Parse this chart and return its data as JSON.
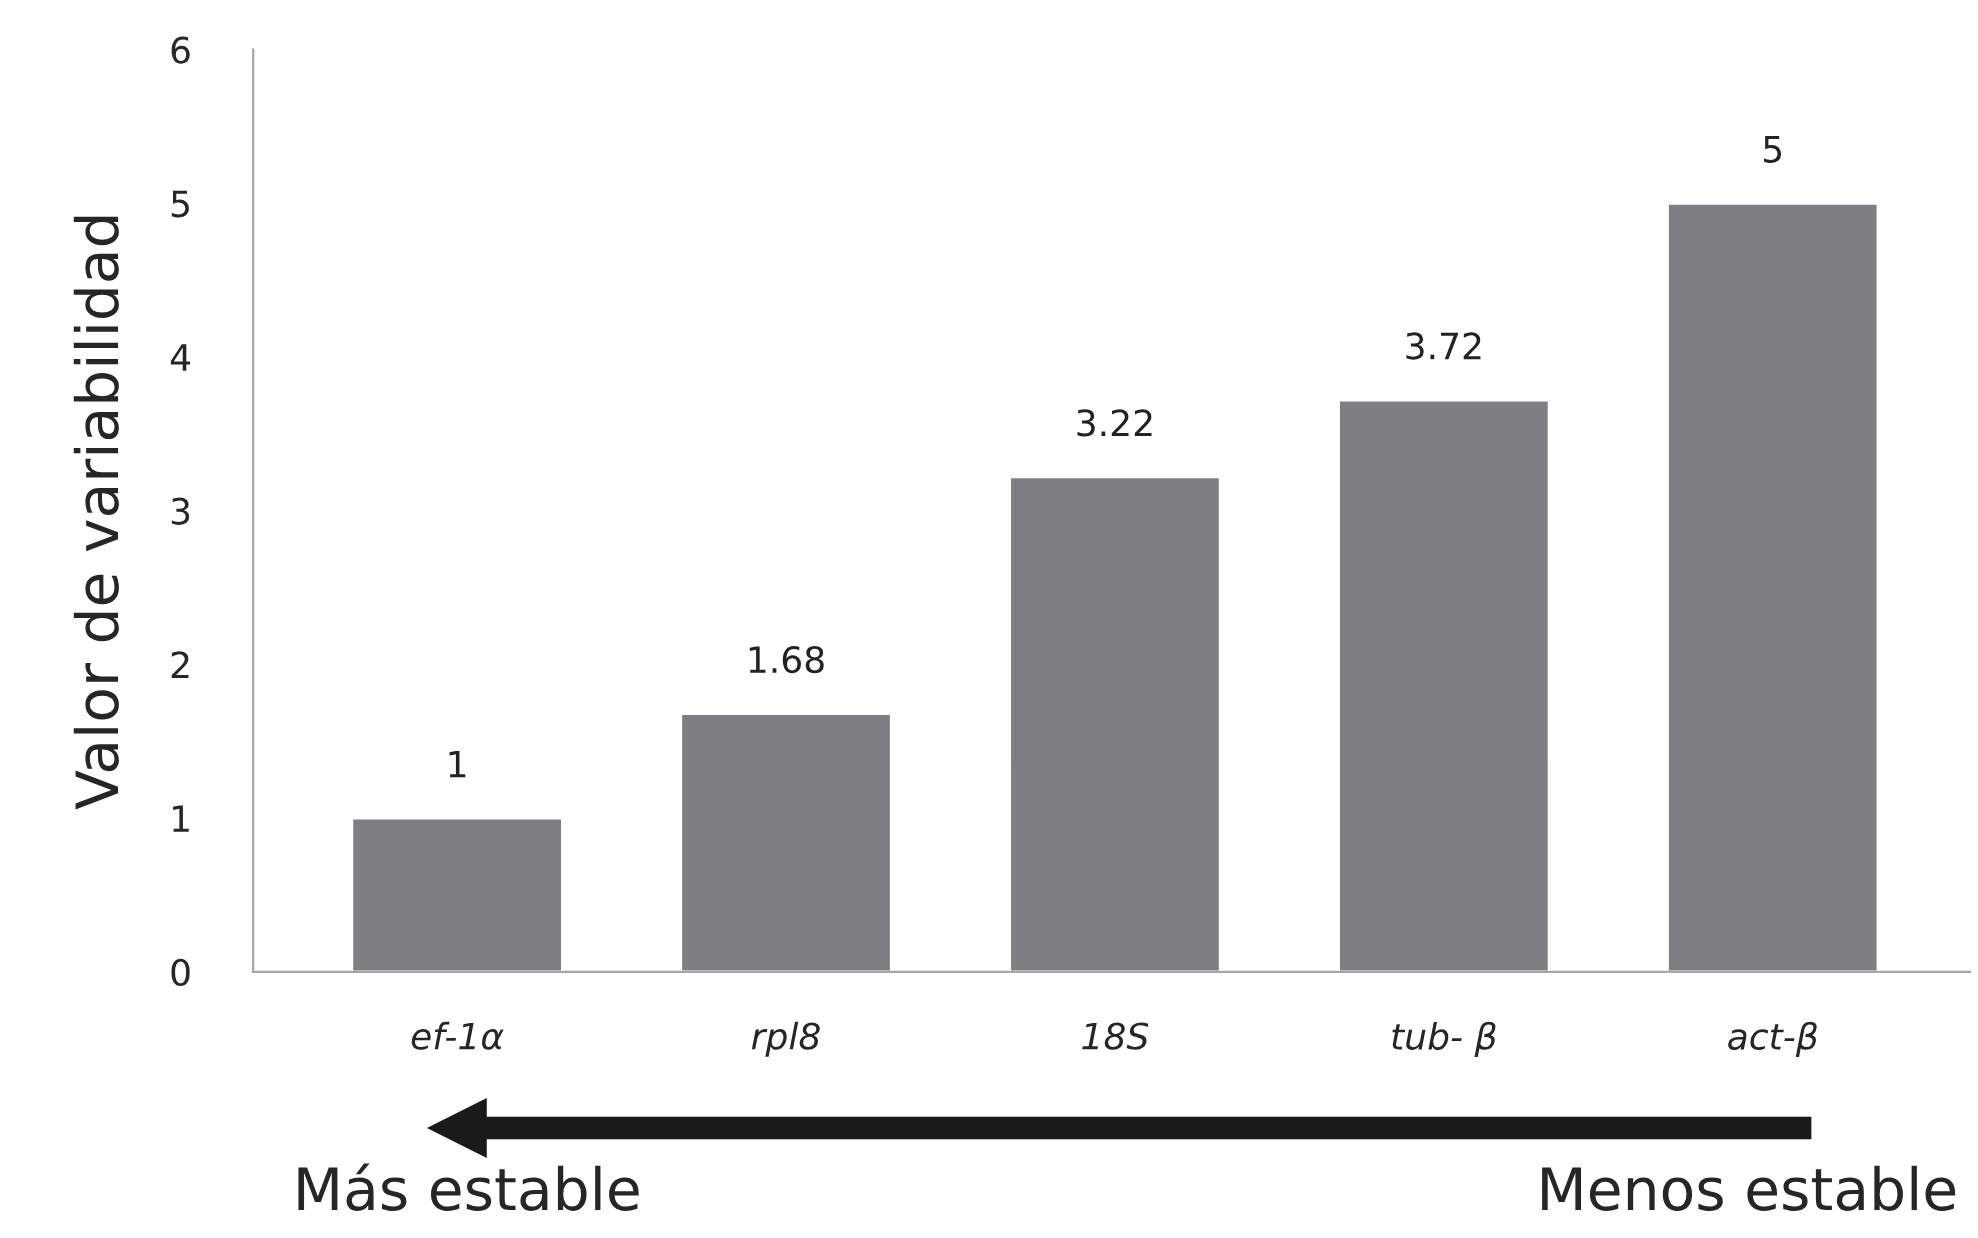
{
  "chart_data": {
    "type": "bar",
    "ylabel": "Valor de variabilidad",
    "categories": [
      "ef-1α",
      "rpl8",
      "18S",
      "tub- β",
      "act-β"
    ],
    "values": [
      1,
      1.68,
      3.22,
      3.72,
      5
    ],
    "color": "#7f7f83",
    "ylim": [
      0,
      6
    ],
    "yticks": [
      0,
      1,
      2,
      3,
      4,
      5,
      6
    ],
    "data_labels": true,
    "grid": false,
    "annotations": [
      "Más estable",
      "Menos estable"
    ]
  }
}
